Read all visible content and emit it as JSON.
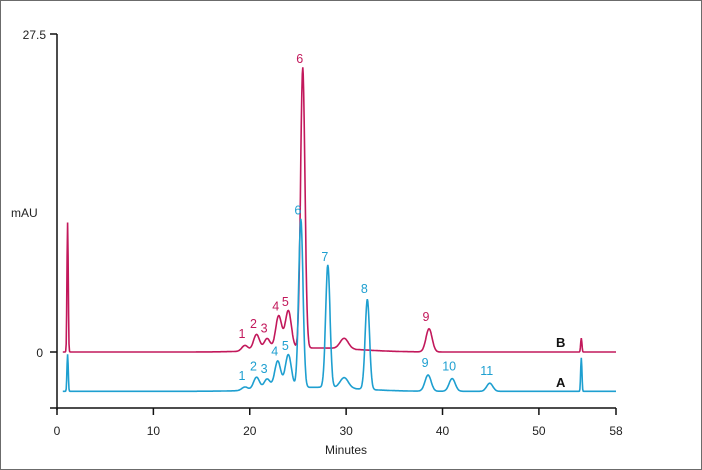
{
  "chart_data": {
    "type": "line",
    "title": "",
    "xlabel": "Minutes",
    "ylabel": "mAU",
    "xlim": [
      0,
      58
    ],
    "ylim": [
      -5,
      27.5
    ],
    "x_ticks": [
      0,
      10,
      20,
      30,
      40,
      50,
      58
    ],
    "y_ticks": [
      {
        "value": 0,
        "label": "0"
      },
      {
        "value": 27.5,
        "label": "27.5"
      }
    ],
    "grid": false,
    "legend": "inline trace labels (B upper, A lower)",
    "colors": {
      "B": "#c2185b",
      "A": "#1e9fd0",
      "axis": "#111111"
    },
    "series": [
      {
        "name": "B",
        "baseline_offset_mau": 0,
        "color": "#c2185b",
        "peaks": [
          {
            "label": "void",
            "x": 1.1,
            "height": 11.2
          },
          {
            "label": "1",
            "x": 19.5,
            "height": 0.5
          },
          {
            "label": "2",
            "x": 20.7,
            "height": 1.4
          },
          {
            "label": "3",
            "x": 21.8,
            "height": 1.0
          },
          {
            "label": "4",
            "x": 23.0,
            "height": 2.9
          },
          {
            "label": "5",
            "x": 24.0,
            "height": 3.3
          },
          {
            "label": "6",
            "x": 25.5,
            "height": 24.3
          },
          {
            "label": "9",
            "x": 38.6,
            "height": 2.0
          },
          {
            "label": "end",
            "x": 54.4,
            "height": 1.2
          }
        ]
      },
      {
        "name": "A",
        "baseline_offset_mau": -3.4,
        "color": "#1e9fd0",
        "peaks": [
          {
            "label": "void",
            "x": 1.1,
            "height": 3.2
          },
          {
            "label": "1",
            "x": 19.5,
            "height": 0.3
          },
          {
            "label": "2",
            "x": 20.7,
            "height": 1.1
          },
          {
            "label": "3",
            "x": 21.8,
            "height": 0.9
          },
          {
            "label": "4",
            "x": 22.9,
            "height": 2.4
          },
          {
            "label": "5",
            "x": 24.0,
            "height": 2.9
          },
          {
            "label": "6",
            "x": 25.3,
            "height": 14.6
          },
          {
            "label": "7",
            "x": 28.1,
            "height": 10.6
          },
          {
            "label": "8",
            "x": 32.2,
            "height": 7.8
          },
          {
            "label": "9",
            "x": 38.5,
            "height": 1.4
          },
          {
            "label": "10",
            "x": 41.0,
            "height": 1.1
          },
          {
            "label": "11",
            "x": 44.9,
            "height": 0.7
          },
          {
            "label": "end",
            "x": 54.4,
            "height": 2.9
          }
        ]
      }
    ]
  },
  "labels": {
    "x_axis_title": "Minutes",
    "y_axis_title": "mAU",
    "y_top": "27.5",
    "y_zero": "0",
    "trace_b": "B",
    "trace_a": "A"
  }
}
